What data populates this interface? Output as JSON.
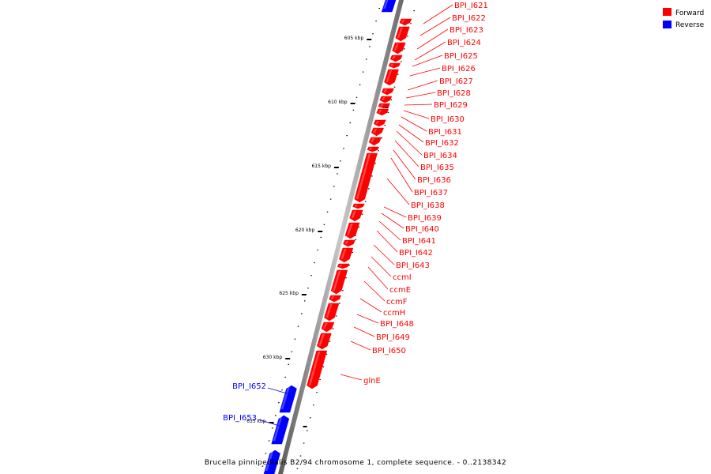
{
  "caption": "Brucella pinnipedialis B2/94 chromosome 1, complete sequence. - 0..2138342",
  "legend": {
    "forward": {
      "label": "Forward",
      "color": "#ff0000"
    },
    "reverse": {
      "label": "Reverse",
      "color": "#0000ff"
    }
  },
  "colors": {
    "forward": "#ff0000",
    "reverse": "#0000ff",
    "backbone": "#8c8c8c"
  },
  "scale_labels": [
    "605 kbp",
    "610 kbp",
    "615 kbp",
    "620 kbp",
    "625 kbp",
    "630 kbp",
    "635 kbp"
  ],
  "forward_genes": [
    "BPI_I621",
    "BPI_I622",
    "BPI_I623",
    "BPI_I624",
    "BPI_I625",
    "BPI_I626",
    "BPI_I627",
    "BPI_I628",
    "BPI_I629",
    "BPI_I630",
    "BPI_I631",
    "BPI_I632",
    "BPI_I634",
    "BPI_I635",
    "BPI_I636",
    "BPI_I637",
    "BPI_I638",
    "BPI_I639",
    "BPI_I640",
    "BPI_I641",
    "BPI_I642",
    "BPI_I643",
    "ccmI",
    "ccmE",
    "ccmF",
    "ccmH",
    "BPI_I648",
    "BPI_I649",
    "BPI_I650",
    "glnE"
  ],
  "reverse_genes": [
    "BPI_I652",
    "BPI_I653"
  ]
}
